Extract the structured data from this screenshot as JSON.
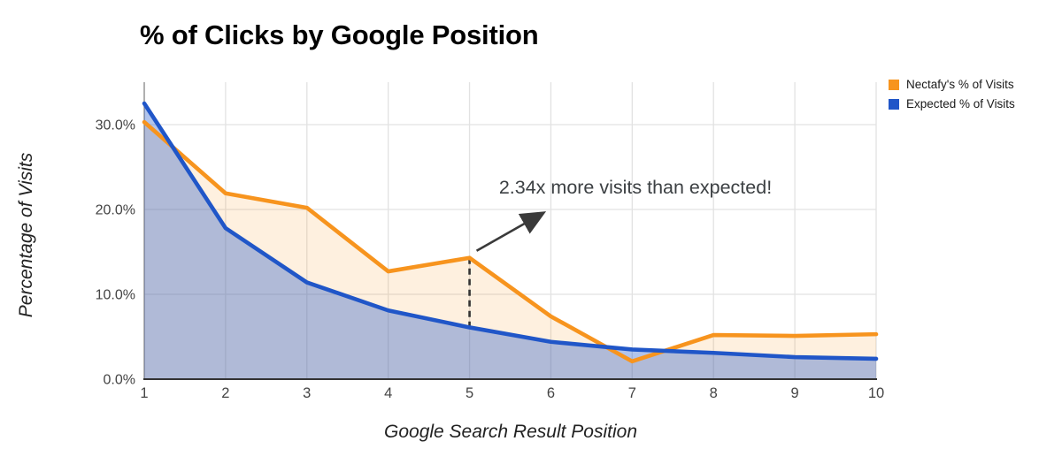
{
  "chart_data": {
    "type": "area",
    "title": "% of Clicks by Google Position",
    "xlabel": "Google Search Result Position",
    "ylabel": "Percentage of Visits",
    "categories": [
      "1",
      "2",
      "3",
      "4",
      "5",
      "6",
      "7",
      "8",
      "9",
      "10"
    ],
    "series": [
      {
        "name": "Nectafy's % of Visits",
        "color": "#F7941E",
        "fill": "rgba(247,148,30,0.14)",
        "values": [
          30.3,
          21.9,
          20.2,
          12.7,
          14.3,
          7.4,
          2.1,
          5.2,
          5.1,
          5.3
        ]
      },
      {
        "name": "Expected % of Visits",
        "color": "#2056C8",
        "fill": "rgba(32,86,200,0.35)",
        "values": [
          32.5,
          17.8,
          11.4,
          8.1,
          6.1,
          4.4,
          3.5,
          3.1,
          2.6,
          2.4
        ]
      }
    ],
    "y_ticks": [
      {
        "value": 0,
        "label": "0.0%"
      },
      {
        "value": 10,
        "label": "10.0%"
      },
      {
        "value": 20,
        "label": "20.0%"
      },
      {
        "value": 30,
        "label": "30.0%"
      }
    ],
    "ylim": [
      0,
      35
    ],
    "grid": true,
    "legend_position": "top-right",
    "annotation": {
      "text": "2.34x more visits than expected!",
      "at_position": 5
    }
  }
}
